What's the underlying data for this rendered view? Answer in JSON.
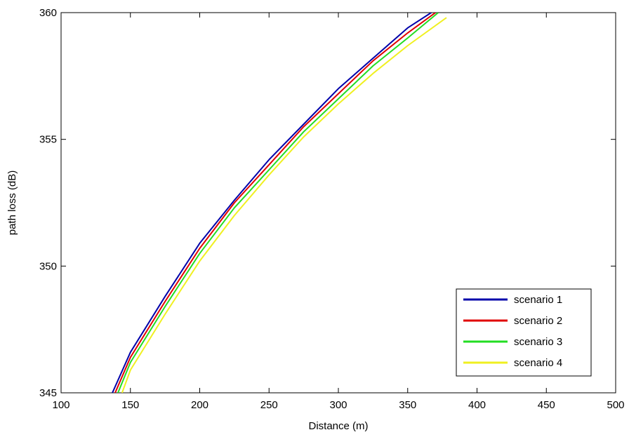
{
  "chart_data": {
    "type": "line",
    "title": "",
    "xlabel": "Distance (m)",
    "ylabel": "path loss (dB)",
    "xlim": [
      100,
      500
    ],
    "ylim": [
      345,
      360
    ],
    "xticks": [
      "100",
      "150",
      "200",
      "250",
      "300",
      "350",
      "400",
      "450",
      "500"
    ],
    "yticks": [
      "345",
      "350",
      "355",
      "360"
    ],
    "grid": false,
    "legend_position": "bottom-right",
    "series": [
      {
        "name": "scenario 1",
        "color": "#0000aa",
        "x": [
          137,
          150,
          175,
          200,
          225,
          250,
          275,
          300,
          325,
          350,
          367
        ],
        "y": [
          345.0,
          346.6,
          348.8,
          350.9,
          352.6,
          354.2,
          355.6,
          357.0,
          358.2,
          359.4,
          360.0
        ]
      },
      {
        "name": "scenario 2",
        "color": "#e00000",
        "x": [
          139,
          150,
          175,
          200,
          225,
          250,
          275,
          300,
          325,
          350,
          370
        ],
        "y": [
          345.0,
          346.4,
          348.6,
          350.7,
          352.5,
          354.0,
          355.5,
          356.8,
          358.1,
          359.2,
          360.0
        ]
      },
      {
        "name": "scenario 3",
        "color": "#22dd22",
        "x": [
          141,
          150,
          175,
          200,
          225,
          250,
          275,
          300,
          325,
          350,
          372
        ],
        "y": [
          345.0,
          346.2,
          348.4,
          350.5,
          352.3,
          353.8,
          355.3,
          356.6,
          357.9,
          359.0,
          360.0
        ]
      },
      {
        "name": "scenario 4",
        "color": "#f0f020",
        "x": [
          144,
          150,
          175,
          200,
          225,
          250,
          275,
          300,
          325,
          350,
          378
        ],
        "y": [
          345.0,
          345.9,
          348.1,
          350.2,
          352.0,
          353.6,
          355.1,
          356.4,
          357.6,
          358.7,
          359.8
        ]
      }
    ]
  }
}
